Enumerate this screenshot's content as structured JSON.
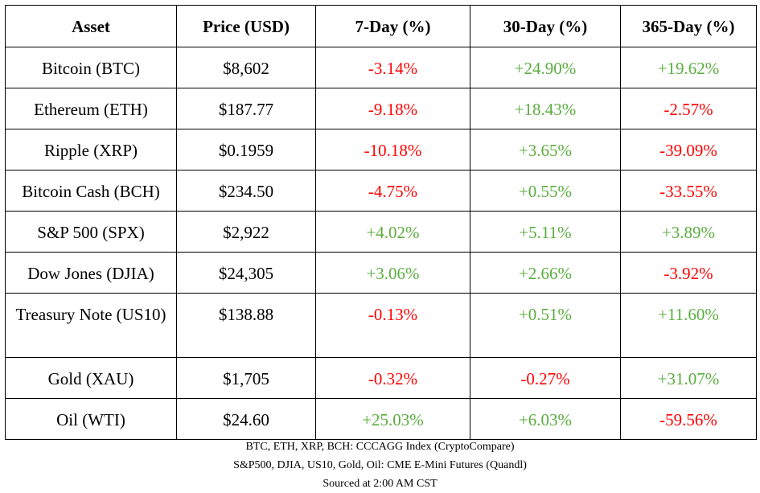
{
  "table": {
    "headers": [
      "Asset",
      "Price (USD)",
      "7-Day (%)",
      "30-Day (%)",
      "365-Day (%)"
    ],
    "rows": [
      {
        "asset": "Bitcoin (BTC)",
        "price": "$8,602",
        "d7": "-3.14%",
        "d30": "+24.90%",
        "d365": "+19.62%"
      },
      {
        "asset": "Ethereum (ETH)",
        "price": "$187.77",
        "d7": "-9.18%",
        "d30": "+18.43%",
        "d365": "-2.57%"
      },
      {
        "asset": "Ripple (XRP)",
        "price": "$0.1959",
        "d7": "-10.18%",
        "d30": "+3.65%",
        "d365": "-39.09%"
      },
      {
        "asset": "Bitcoin Cash (BCH)",
        "price": "$234.50",
        "d7": "-4.75%",
        "d30": "+0.55%",
        "d365": "-33.55%"
      },
      {
        "asset": "S&P 500 (SPX)",
        "price": "$2,922",
        "d7": "+4.02%",
        "d30": "+5.11%",
        "d365": "+3.89%"
      },
      {
        "asset": "Dow Jones (DJIA)",
        "price": "$24,305",
        "d7": "+3.06%",
        "d30": "+2.66%",
        "d365": "-3.92%"
      },
      {
        "asset": "Treasury Note (US10)",
        "price": "$138.88",
        "d7": "-0.13%",
        "d30": "+0.51%",
        "d365": "+11.60%"
      },
      {
        "asset": "Gold (XAU)",
        "price": "$1,705",
        "d7": "-0.32%",
        "d30": "-0.27%",
        "d365": "+31.07%"
      },
      {
        "asset": "Oil (WTI)",
        "price": "$24.60",
        "d7": "+25.03%",
        "d30": "+6.03%",
        "d365": "-59.56%"
      }
    ]
  },
  "notes": [
    "BTC, ETH, XRP, BCH: CCCAGG  Index (CryptoCompare)",
    "S&P500, DJIA, US10, Gold, Oil: CME E-Mini Futures (Quandl)",
    "Sourced at 2:00 AM CST"
  ],
  "colors": {
    "negative": "#ff0000",
    "positive": "#5aad3f",
    "border": "#000000"
  }
}
